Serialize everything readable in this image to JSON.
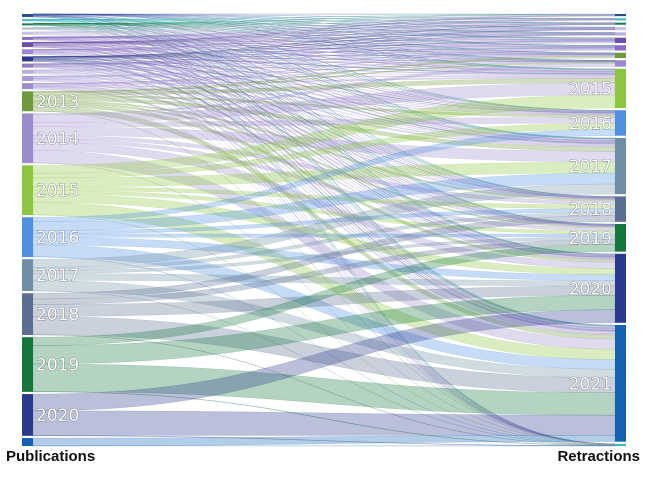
{
  "chart_data": {
    "type": "sankey",
    "source_axis_label": "Publications",
    "target_axis_label": "Retractions",
    "left_nodes": [
      {
        "id": "p2000",
        "label": "",
        "value": 3,
        "color": "#2c4a9a"
      },
      {
        "id": "p2001",
        "label": "",
        "value": 2,
        "color": "#3bbdbd"
      },
      {
        "id": "p2002",
        "label": "",
        "value": 2,
        "color": "#1e7e52"
      },
      {
        "id": "p2003",
        "label": "",
        "value": 2,
        "color": "#a9b9cf"
      },
      {
        "id": "p2004",
        "label": "",
        "value": 3,
        "color": "#c7c2e2"
      },
      {
        "id": "p2005",
        "label": "",
        "value": 3,
        "color": "#8a6cc6"
      },
      {
        "id": "p2006",
        "label": "",
        "value": 5,
        "color": "#6d4ea8"
      },
      {
        "id": "p2007",
        "label": "",
        "value": 5,
        "color": "#9b86cf"
      },
      {
        "id": "p2008",
        "label": "",
        "value": 5,
        "color": "#2b3a8c"
      },
      {
        "id": "p2009",
        "label": "",
        "value": 4,
        "color": "#8e7cc3"
      },
      {
        "id": "p2010",
        "label": "",
        "value": 4,
        "color": "#b7b0da"
      },
      {
        "id": "p2011",
        "label": "",
        "value": 5,
        "color": "#a89ad6"
      },
      {
        "id": "p2012",
        "label": "",
        "value": 6,
        "color": "#9c8ccc"
      },
      {
        "id": "p2013",
        "label": "2013",
        "value": 20,
        "color": "#6f9a3c"
      },
      {
        "id": "p2014",
        "label": "2014",
        "value": 50,
        "color": "#9b8bcb"
      },
      {
        "id": "p2015",
        "label": "2015",
        "value": 50,
        "color": "#8cc63f"
      },
      {
        "id": "p2016",
        "label": "2016",
        "value": 40,
        "color": "#4f8fe0"
      },
      {
        "id": "p2017",
        "label": "2017",
        "value": 32,
        "color": "#6f8fa4"
      },
      {
        "id": "p2018",
        "label": "2018",
        "value": 42,
        "color": "#5a6f92"
      },
      {
        "id": "p2019",
        "label": "2019",
        "value": 55,
        "color": "#15773d"
      },
      {
        "id": "p2020",
        "label": "2020",
        "value": 42,
        "color": "#2b3a8c"
      },
      {
        "id": "p2021",
        "label": "",
        "value": 8,
        "color": "#1562b5"
      }
    ],
    "right_nodes": [
      {
        "id": "r2006",
        "label": "",
        "value": 2,
        "color": "#2c4a9a"
      },
      {
        "id": "r2007",
        "label": "",
        "value": 2,
        "color": "#3bbdbd"
      },
      {
        "id": "r2008",
        "label": "",
        "value": 2,
        "color": "#1e7e52"
      },
      {
        "id": "r2009",
        "label": "",
        "value": 3,
        "color": "#c7c2e2"
      },
      {
        "id": "r2010",
        "label": "",
        "value": 3,
        "color": "#b7b0da"
      },
      {
        "id": "r2011",
        "label": "",
        "value": 5,
        "color": "#6d4ea8"
      },
      {
        "id": "r2012",
        "label": "",
        "value": 5,
        "color": "#8a6cc6"
      },
      {
        "id": "r2013",
        "label": "",
        "value": 5,
        "color": "#6f9a3c"
      },
      {
        "id": "r2014",
        "label": "",
        "value": 6,
        "color": "#9b86cf"
      },
      {
        "id": "r2015",
        "label": "2015",
        "value": 37,
        "color": "#8cc63f"
      },
      {
        "id": "r2016",
        "label": "2016",
        "value": 24,
        "color": "#4f8fe0"
      },
      {
        "id": "r2017",
        "label": "2017",
        "value": 53,
        "color": "#6f8fa4"
      },
      {
        "id": "r2018",
        "label": "2018",
        "value": 24,
        "color": "#5a6f92"
      },
      {
        "id": "r2019",
        "label": "2019",
        "value": 26,
        "color": "#15773d"
      },
      {
        "id": "r2020",
        "label": "2020",
        "value": 65,
        "color": "#2b3a8c"
      },
      {
        "id": "r2021",
        "label": "2021",
        "value": 110,
        "color": "#1562b5"
      },
      {
        "id": "r2022",
        "label": "",
        "value": 2,
        "color": "#3bbdbd"
      }
    ]
  }
}
